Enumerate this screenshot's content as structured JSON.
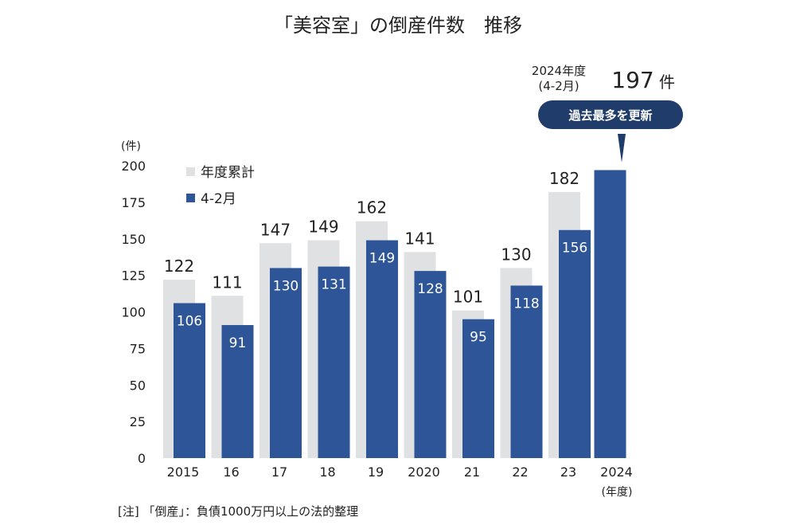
{
  "chart_data": {
    "type": "bar",
    "title": "「美容室」の倒産件数　推移",
    "ylabel": "(件)",
    "xlabel": "(年度)",
    "ylim": [
      0,
      200
    ],
    "yticks": [
      0,
      25,
      50,
      75,
      100,
      125,
      150,
      175,
      200
    ],
    "categories": [
      "2015",
      "16",
      "17",
      "18",
      "19",
      "2020",
      "21",
      "22",
      "23",
      "2024"
    ],
    "series": [
      {
        "name": "年度累計",
        "color": "#dfe1e3",
        "values": [
          122,
          111,
          147,
          149,
          162,
          141,
          101,
          130,
          182,
          null
        ]
      },
      {
        "name": "4-2月",
        "color": "#2e5597",
        "values": [
          106,
          91,
          130,
          131,
          149,
          128,
          95,
          118,
          156,
          197
        ]
      }
    ],
    "legend_position": "top-left",
    "annotation": {
      "line1": "2024年度",
      "line2": "(4-2月)",
      "value": "197",
      "unit": "件",
      "badge": "過去最多を更新",
      "badge_color": "#1f3c6b"
    },
    "footnote": "[注] 「倒産」：負債1000万円以上の法的整理"
  }
}
